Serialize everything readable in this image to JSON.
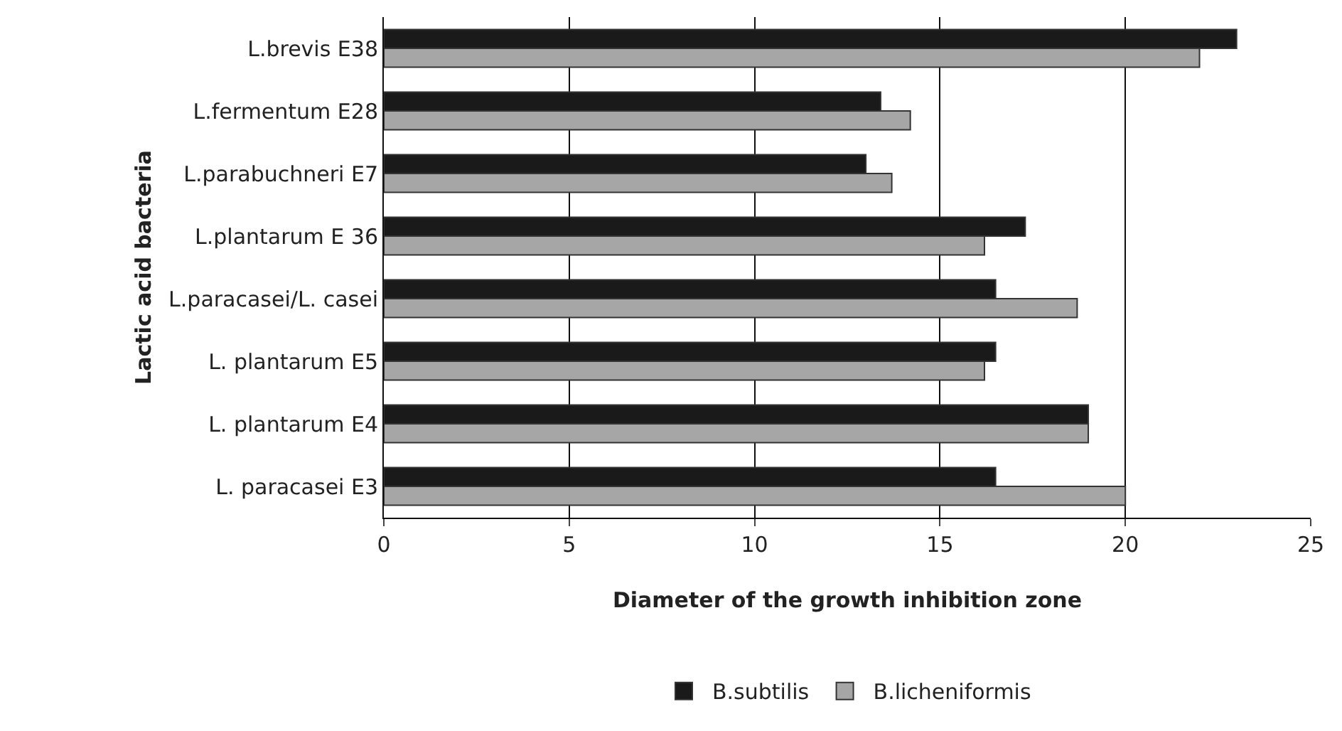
{
  "chart_data": {
    "type": "bar",
    "orientation": "horizontal",
    "xlabel": "Diameter of the growth inhibition zone",
    "ylabel": "Lactic acid bacteria",
    "categories": [
      "L.brevis E38",
      "L.fermentum E28",
      "L.parabuchneri E7",
      "L.plantarum E 36",
      "L.paracasei/L. casei",
      "L. plantarum E5",
      "L. plantarum E4",
      "L. paracasei E3"
    ],
    "series": [
      {
        "name": "B.subtilis",
        "color": "#1a1a1a",
        "values": [
          23.0,
          13.4,
          13.0,
          17.3,
          16.5,
          16.5,
          19.0,
          16.5
        ]
      },
      {
        "name": "B.licheniformis",
        "color": "#a6a6a6",
        "values": [
          22.0,
          14.2,
          13.7,
          16.2,
          18.7,
          16.2,
          19.0,
          20.0
        ]
      }
    ],
    "xlim": [
      0,
      25
    ],
    "xticks": [
      0,
      5,
      10,
      15,
      20,
      25
    ],
    "grid": "x",
    "legend": "bottom"
  }
}
